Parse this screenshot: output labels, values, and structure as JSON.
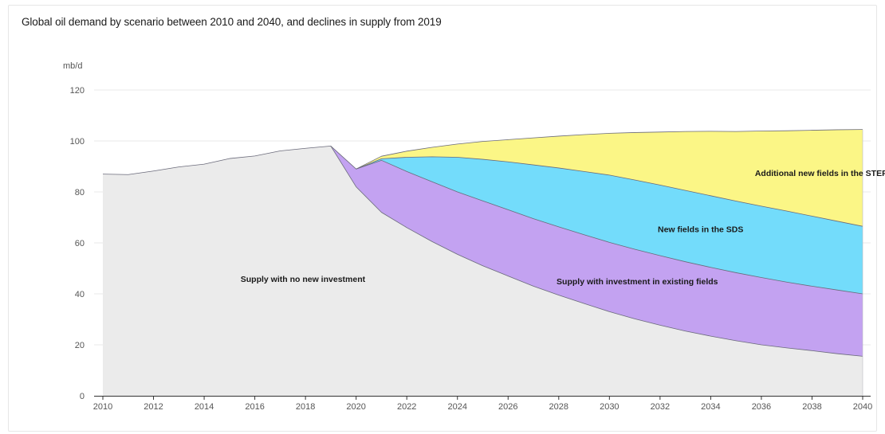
{
  "chart_data": {
    "type": "area",
    "title": "Global oil demand by scenario between 2010 and 2040, and declines in supply from 2019",
    "ylabel": "mb/d",
    "xlim": [
      2010,
      2040
    ],
    "ylim": [
      0,
      120
    ],
    "x_ticks": [
      2010,
      2012,
      2014,
      2016,
      2018,
      2020,
      2022,
      2024,
      2026,
      2028,
      2030,
      2032,
      2034,
      2036,
      2038,
      2040
    ],
    "y_ticks": [
      0,
      20,
      40,
      60,
      80,
      100,
      120
    ],
    "grid": true,
    "colors": {
      "no_new_investment": "#ebebeb",
      "existing_fields": "#c3a2f1",
      "new_fields_sds": "#73dcfb",
      "additional_steps": "#fbf686",
      "line": "#6a6a7a"
    },
    "series": [
      {
        "key": "no_new_investment",
        "x": [
          2010,
          2011,
          2012,
          2013,
          2014,
          2015,
          2016,
          2017,
          2018,
          2019,
          2020,
          2021,
          2022,
          2023,
          2024,
          2025,
          2026,
          2027,
          2028,
          2029,
          2030,
          2031,
          2032,
          2033,
          2034,
          2035,
          2036,
          2037,
          2038,
          2039,
          2040
        ],
        "values": [
          87,
          86.8,
          88.2,
          89.8,
          90.9,
          93.1,
          94.1,
          96.1,
          97.1,
          98,
          82,
          72,
          66,
          60.5,
          55.5,
          51,
          47,
          43,
          39.5,
          36.2,
          33,
          30.2,
          27.7,
          25.4,
          23.4,
          21.6,
          20,
          18.8,
          17.7,
          16.5,
          15.5
        ]
      },
      {
        "key": "existing_fields",
        "label": "Supply with investment in existing fields",
        "x": [
          2019,
          2020,
          2021,
          2022,
          2023,
          2024,
          2025,
          2026,
          2027,
          2028,
          2029,
          2030,
          2031,
          2032,
          2033,
          2034,
          2035,
          2036,
          2037,
          2038,
          2039,
          2040
        ],
        "cumulative": [
          98,
          89,
          92.4,
          88,
          84,
          80,
          76.5,
          73,
          69.5,
          66.3,
          63.2,
          60.2,
          57.5,
          55,
          52.6,
          50.4,
          48.3,
          46.4,
          44.6,
          43,
          41.5,
          40
        ]
      },
      {
        "key": "new_fields_sds",
        "label": "New fields in the SDS",
        "x": [
          2020,
          2021,
          2022,
          2023,
          2024,
          2025,
          2026,
          2027,
          2028,
          2029,
          2030,
          2031,
          2032,
          2033,
          2034,
          2035,
          2036,
          2037,
          2038,
          2039,
          2040
        ],
        "cumulative": [
          89,
          93,
          93.6,
          93.8,
          93.6,
          92.8,
          91.8,
          90.6,
          89.4,
          88,
          86.6,
          84.7,
          82.7,
          80.6,
          78.5,
          76.4,
          74.4,
          72.5,
          70.5,
          68.5,
          66.5
        ]
      },
      {
        "key": "additional_steps",
        "label": "Additional new fields in the STEPS",
        "x": [
          2020,
          2021,
          2022,
          2023,
          2024,
          2025,
          2026,
          2027,
          2028,
          2029,
          2030,
          2031,
          2032,
          2033,
          2034,
          2035,
          2036,
          2037,
          2038,
          2039,
          2040
        ],
        "cumulative": [
          89,
          94,
          96,
          97.5,
          98.8,
          99.8,
          100.5,
          101.2,
          101.9,
          102.5,
          103,
          103.3,
          103.5,
          103.7,
          103.8,
          103.7,
          103.9,
          104,
          104.2,
          104.4,
          104.5
        ]
      }
    ],
    "annotations": [
      {
        "key": "no_new_investment",
        "text": "Supply with no new investment",
        "x": 2017.9,
        "y": 46
      },
      {
        "key": "existing_fields",
        "text": "Supply with investment in existing fields",
        "x": 2031.1,
        "y": 45
      },
      {
        "key": "new_fields_sds",
        "text": "New fields in the SDS",
        "x": 2033.6,
        "y": 65.5
      },
      {
        "key": "additional_steps",
        "text": "Additional new fields in the STEPS",
        "x": 2041.2,
        "y": 87.5
      }
    ]
  }
}
